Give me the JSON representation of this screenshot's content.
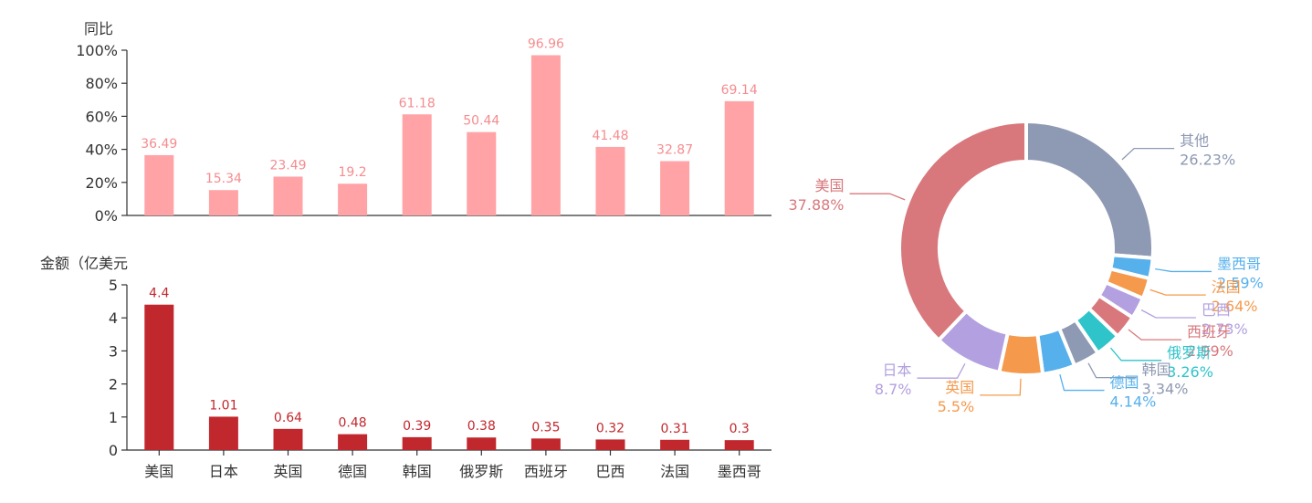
{
  "chart_data": [
    {
      "type": "bar",
      "panel": "top",
      "ylabel": "同比",
      "categories": [
        "美国",
        "日本",
        "英国",
        "德国",
        "韩国",
        "俄罗斯",
        "西班牙",
        "巴西",
        "法国",
        "墨西哥"
      ],
      "values": [
        36.49,
        15.34,
        23.49,
        19.2,
        61.18,
        50.44,
        96.96,
        41.48,
        32.87,
        69.14
      ],
      "value_labels": [
        "36.49",
        "15.34",
        "23.49",
        "19.2",
        "61.18",
        "50.44",
        "96.96",
        "41.48",
        "32.87",
        "69.14"
      ],
      "ylim": [
        0,
        100
      ],
      "yticks": [
        "0%",
        "20%",
        "40%",
        "60%",
        "80%",
        "100%"
      ],
      "color": "#ffa3a6",
      "label_color": "#f58c8f",
      "grid": false
    },
    {
      "type": "bar",
      "panel": "bottom",
      "ylabel": "金额（亿美元",
      "categories": [
        "美国",
        "日本",
        "英国",
        "德国",
        "韩国",
        "俄罗斯",
        "西班牙",
        "巴西",
        "法国",
        "墨西哥"
      ],
      "values": [
        4.4,
        1.01,
        0.64,
        0.48,
        0.39,
        0.38,
        0.35,
        0.32,
        0.31,
        0.3
      ],
      "value_labels": [
        "4.4",
        "1.01",
        "0.64",
        "0.48",
        "0.39",
        "0.38",
        "0.35",
        "0.32",
        "0.31",
        "0.3"
      ],
      "ylim": [
        0,
        5
      ],
      "yticks": [
        "0",
        "1",
        "2",
        "3",
        "4",
        "5"
      ],
      "color": "#c1282e",
      "label_color": "#c1282e",
      "grid": false
    },
    {
      "type": "pie",
      "panel": "right",
      "donut": true,
      "slices": [
        {
          "name": "其他",
          "value": 26.23,
          "label": "26.23%",
          "color": "#8e99b3"
        },
        {
          "name": "墨西哥",
          "value": 2.59,
          "label": "2.59%",
          "color": "#56b0ec"
        },
        {
          "name": "法国",
          "value": 2.64,
          "label": "2.64%",
          "color": "#f59a4c"
        },
        {
          "name": "巴西",
          "value": 2.73,
          "label": "2.73%",
          "color": "#b3a0e0"
        },
        {
          "name": "西班牙",
          "value": 2.99,
          "label": "2.99%",
          "color": "#d8787c"
        },
        {
          "name": "俄罗斯",
          "value": 3.26,
          "label": "3.26%",
          "color": "#2fc4ca"
        },
        {
          "name": "韩国",
          "value": 3.34,
          "label": "3.34%",
          "color": "#8e99b3"
        },
        {
          "name": "德国",
          "value": 4.14,
          "label": "4.14%",
          "color": "#56b0ec"
        },
        {
          "name": "英国",
          "value": 5.5,
          "label": "5.5%",
          "color": "#f59a4c"
        },
        {
          "name": "日本",
          "value": 8.7,
          "label": "8.7%",
          "color": "#b3a0e0"
        },
        {
          "name": "美国",
          "value": 37.88,
          "label": "37.88%",
          "color": "#d8787c"
        }
      ]
    }
  ]
}
